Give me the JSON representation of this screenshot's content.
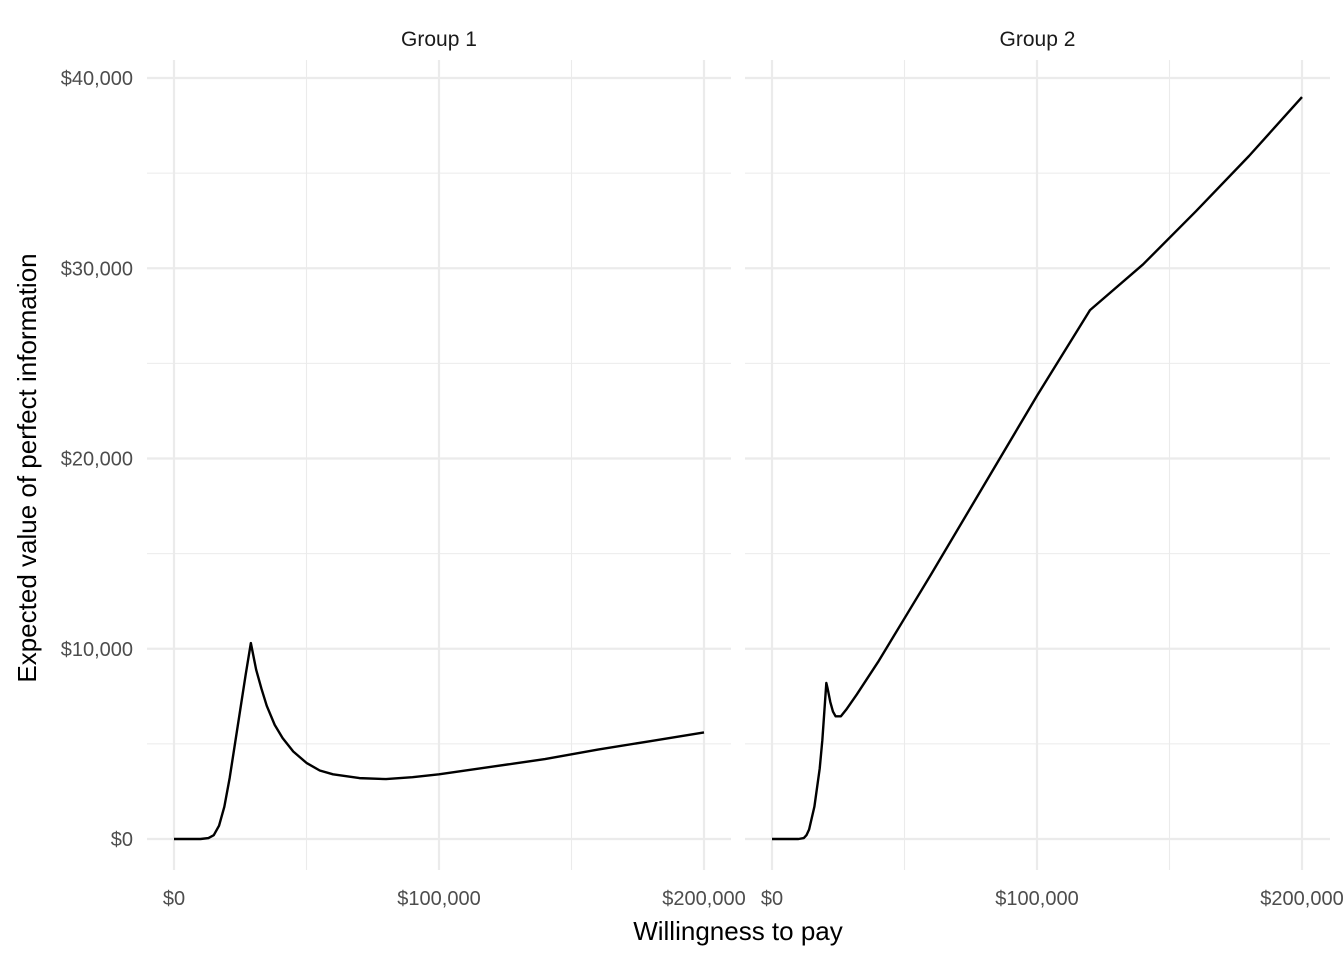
{
  "chart_data": {
    "type": "line",
    "xlabel": "Willingness to pay",
    "ylabel": "Expected value of perfect information",
    "xlim": [
      0,
      200000
    ],
    "ylim": [
      0,
      40000
    ],
    "x_ticks": [
      0,
      100000,
      200000
    ],
    "x_tick_labels": [
      "$0",
      "$100,000",
      "$200,000"
    ],
    "y_ticks": [
      0,
      10000,
      20000,
      30000,
      40000
    ],
    "y_tick_labels": [
      "$0",
      "$10,000",
      "$20,000",
      "$30,000",
      "$40,000"
    ],
    "grid": true,
    "colors": {
      "line": "#000000",
      "grid": "#ebebeb"
    },
    "panels": [
      {
        "title": "Group 1",
        "x": [
          0,
          5000,
          10000,
          13000,
          15000,
          17000,
          19000,
          21000,
          23000,
          25000,
          27000,
          29000,
          30000,
          31000,
          33000,
          35000,
          38000,
          41000,
          45000,
          50000,
          55000,
          60000,
          70000,
          80000,
          90000,
          100000,
          120000,
          140000,
          160000,
          180000,
          200000
        ],
        "y": [
          0,
          0,
          0,
          50,
          200,
          700,
          1700,
          3200,
          5000,
          6800,
          8600,
          10300,
          9600,
          8900,
          7900,
          7000,
          6000,
          5300,
          4600,
          4000,
          3600,
          3400,
          3200,
          3150,
          3250,
          3400,
          3800,
          4200,
          4700,
          5150,
          5600
        ]
      },
      {
        "title": "Group 2",
        "x": [
          0,
          5000,
          10000,
          12000,
          13000,
          14000,
          16000,
          18000,
          19000,
          20000,
          20500,
          21000,
          22000,
          23000,
          24000,
          26000,
          28000,
          32000,
          40000,
          50000,
          60000,
          80000,
          100000,
          120000,
          140000,
          160000,
          180000,
          200000
        ],
        "y": [
          0,
          0,
          0,
          50,
          200,
          500,
          1700,
          3700,
          5200,
          7200,
          8200,
          7900,
          7200,
          6700,
          6450,
          6450,
          6800,
          7600,
          9300,
          11600,
          13900,
          18600,
          23300,
          27800,
          30200,
          33000,
          35900,
          39000
        ]
      }
    ]
  }
}
